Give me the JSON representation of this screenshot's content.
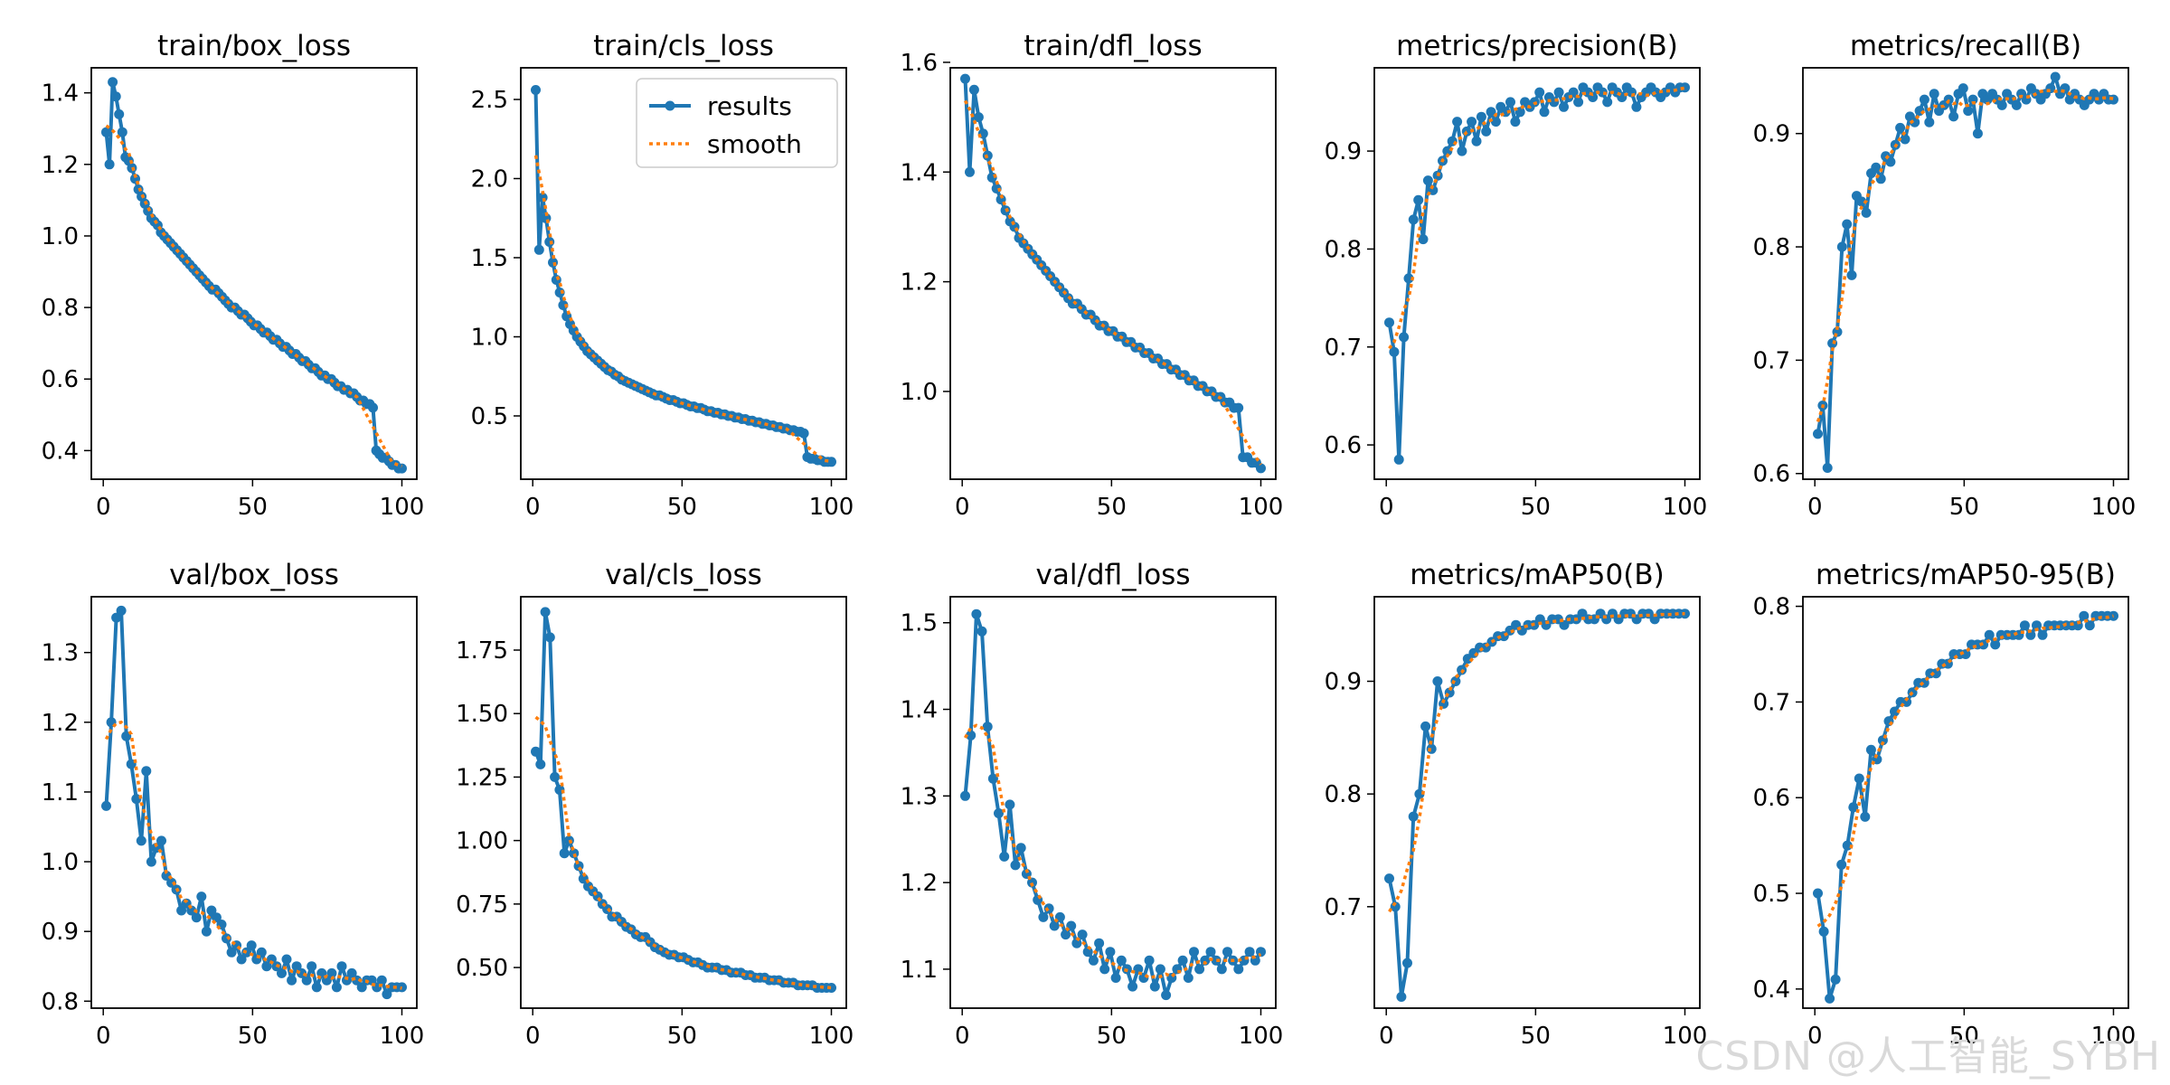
{
  "legend": {
    "results_label": "results",
    "smooth_label": "smooth"
  },
  "watermark": "CSDN @人工智能_SYBH",
  "colors": {
    "results": "#1f77b4",
    "smooth": "#ff7f0e",
    "axis": "#000000"
  },
  "chart_data": [
    {
      "id": "train_box_loss",
      "type": "line",
      "title": "train/box_loss",
      "xlim": [
        -4,
        105
      ],
      "ylim": [
        0.32,
        1.47
      ],
      "xticks": [
        0,
        50,
        100
      ],
      "yticks": [
        0.4,
        0.6,
        0.8,
        1.0,
        1.2,
        1.4
      ],
      "ytick_labels": [
        "0.4",
        "0.6",
        "0.8",
        "1.0",
        "1.2",
        "1.4"
      ],
      "series": [
        {
          "name": "results",
          "x_start": 1,
          "values": [
            1.29,
            1.2,
            1.43,
            1.39,
            1.34,
            1.29,
            1.22,
            1.21,
            1.19,
            1.16,
            1.13,
            1.11,
            1.09,
            1.07,
            1.05,
            1.04,
            1.03,
            1.01,
            1.0,
            0.99,
            0.98,
            0.97,
            0.96,
            0.95,
            0.94,
            0.93,
            0.92,
            0.91,
            0.9,
            0.89,
            0.88,
            0.87,
            0.86,
            0.85,
            0.85,
            0.84,
            0.83,
            0.82,
            0.81,
            0.8,
            0.8,
            0.79,
            0.78,
            0.78,
            0.77,
            0.76,
            0.75,
            0.75,
            0.74,
            0.73,
            0.73,
            0.72,
            0.71,
            0.71,
            0.7,
            0.69,
            0.69,
            0.68,
            0.67,
            0.67,
            0.66,
            0.65,
            0.65,
            0.64,
            0.63,
            0.63,
            0.62,
            0.61,
            0.61,
            0.6,
            0.6,
            0.59,
            0.58,
            0.58,
            0.57,
            0.57,
            0.56,
            0.56,
            0.55,
            0.54,
            0.54,
            0.53,
            0.53,
            0.52,
            0.4,
            0.39,
            0.38,
            0.38,
            0.37,
            0.36,
            0.36,
            0.35,
            0.35
          ]
        }
      ],
      "legend": false
    },
    {
      "id": "train_cls_loss",
      "type": "line",
      "title": "train/cls_loss",
      "xlim": [
        -4,
        105
      ],
      "ylim": [
        0.1,
        2.7
      ],
      "xticks": [
        0,
        50,
        100
      ],
      "yticks": [
        0.5,
        1.0,
        1.5,
        2.0,
        2.5
      ],
      "ytick_labels": [
        "0.5",
        "1.0",
        "1.5",
        "2.0",
        "2.5"
      ],
      "series": [
        {
          "name": "results",
          "x_start": 1,
          "values": [
            2.56,
            1.55,
            1.88,
            1.75,
            1.6,
            1.47,
            1.36,
            1.28,
            1.2,
            1.13,
            1.08,
            1.04,
            1.0,
            0.97,
            0.94,
            0.91,
            0.89,
            0.87,
            0.85,
            0.83,
            0.81,
            0.79,
            0.78,
            0.76,
            0.75,
            0.73,
            0.72,
            0.71,
            0.7,
            0.69,
            0.68,
            0.67,
            0.66,
            0.65,
            0.64,
            0.63,
            0.63,
            0.62,
            0.61,
            0.6,
            0.6,
            0.59,
            0.58,
            0.58,
            0.57,
            0.56,
            0.56,
            0.55,
            0.55,
            0.54,
            0.53,
            0.53,
            0.52,
            0.52,
            0.51,
            0.51,
            0.5,
            0.5,
            0.49,
            0.49,
            0.48,
            0.48,
            0.47,
            0.47,
            0.46,
            0.46,
            0.45,
            0.45,
            0.44,
            0.44,
            0.43,
            0.43,
            0.42,
            0.42,
            0.41,
            0.41,
            0.4,
            0.4,
            0.39,
            0.24,
            0.23,
            0.23,
            0.22,
            0.22,
            0.21,
            0.21,
            0.21
          ]
        }
      ],
      "legend": true
    },
    {
      "id": "train_dfl_loss",
      "type": "line",
      "title": "train/dfl_loss",
      "xlim": [
        -4,
        105
      ],
      "ylim": [
        0.84,
        1.59
      ],
      "xticks": [
        0,
        50,
        100
      ],
      "yticks": [
        1.0,
        1.2,
        1.4,
        1.6
      ],
      "ytick_labels": [
        "1.0",
        "1.2",
        "1.4",
        "1.6"
      ],
      "series": [
        {
          "name": "results",
          "x_start": 1,
          "values": [
            1.57,
            1.4,
            1.55,
            1.5,
            1.47,
            1.43,
            1.39,
            1.37,
            1.35,
            1.33,
            1.31,
            1.3,
            1.28,
            1.27,
            1.26,
            1.25,
            1.24,
            1.23,
            1.22,
            1.21,
            1.2,
            1.19,
            1.18,
            1.17,
            1.16,
            1.16,
            1.15,
            1.14,
            1.14,
            1.13,
            1.12,
            1.12,
            1.11,
            1.11,
            1.1,
            1.1,
            1.09,
            1.09,
            1.08,
            1.08,
            1.07,
            1.07,
            1.06,
            1.06,
            1.05,
            1.05,
            1.04,
            1.04,
            1.03,
            1.03,
            1.02,
            1.02,
            1.01,
            1.01,
            1.0,
            1.0,
            0.99,
            0.99,
            0.98,
            0.98,
            0.97,
            0.97,
            0.88,
            0.88,
            0.87,
            0.87,
            0.86
          ]
        }
      ],
      "legend": false
    },
    {
      "id": "metrics_precision",
      "type": "line",
      "title": "metrics/precision(B)",
      "xlim": [
        -4,
        105
      ],
      "ylim": [
        0.565,
        0.985
      ],
      "xticks": [
        0,
        50,
        100
      ],
      "yticks": [
        0.6,
        0.7,
        0.8,
        0.9
      ],
      "ytick_labels": [
        "0.6",
        "0.7",
        "0.8",
        "0.9"
      ],
      "series": [
        {
          "name": "results",
          "x_start": 1,
          "values": [
            0.725,
            0.695,
            0.585,
            0.71,
            0.77,
            0.83,
            0.85,
            0.81,
            0.87,
            0.86,
            0.875,
            0.89,
            0.9,
            0.91,
            0.93,
            0.9,
            0.92,
            0.93,
            0.91,
            0.935,
            0.92,
            0.94,
            0.93,
            0.945,
            0.94,
            0.95,
            0.93,
            0.94,
            0.95,
            0.945,
            0.95,
            0.96,
            0.94,
            0.955,
            0.95,
            0.96,
            0.945,
            0.955,
            0.96,
            0.95,
            0.965,
            0.96,
            0.955,
            0.965,
            0.96,
            0.95,
            0.965,
            0.96,
            0.955,
            0.965,
            0.96,
            0.945,
            0.955,
            0.96,
            0.965,
            0.96,
            0.955,
            0.96,
            0.965,
            0.96,
            0.965,
            0.965
          ]
        }
      ],
      "legend": false
    },
    {
      "id": "metrics_recall",
      "type": "line",
      "title": "metrics/recall(B)",
      "xlim": [
        -4,
        105
      ],
      "ylim": [
        0.595,
        0.958
      ],
      "xticks": [
        0,
        50,
        100
      ],
      "yticks": [
        0.6,
        0.7,
        0.8,
        0.9
      ],
      "ytick_labels": [
        "0.6",
        "0.7",
        "0.8",
        "0.9"
      ],
      "series": [
        {
          "name": "results",
          "x_start": 1,
          "values": [
            0.635,
            0.66,
            0.605,
            0.715,
            0.725,
            0.8,
            0.82,
            0.775,
            0.845,
            0.84,
            0.83,
            0.865,
            0.87,
            0.86,
            0.88,
            0.875,
            0.89,
            0.905,
            0.895,
            0.915,
            0.91,
            0.92,
            0.93,
            0.91,
            0.935,
            0.92,
            0.925,
            0.93,
            0.915,
            0.935,
            0.94,
            0.92,
            0.93,
            0.9,
            0.935,
            0.93,
            0.935,
            0.93,
            0.925,
            0.935,
            0.93,
            0.925,
            0.935,
            0.93,
            0.94,
            0.935,
            0.93,
            0.935,
            0.94,
            0.95,
            0.935,
            0.94,
            0.93,
            0.935,
            0.93,
            0.925,
            0.93,
            0.935,
            0.93,
            0.935,
            0.93,
            0.93
          ]
        }
      ],
      "legend": false
    },
    {
      "id": "val_box_loss",
      "type": "line",
      "title": "val/box_loss",
      "xlim": [
        -4,
        105
      ],
      "ylim": [
        0.79,
        1.38
      ],
      "xticks": [
        0,
        50,
        100
      ],
      "yticks": [
        0.8,
        0.9,
        1.0,
        1.1,
        1.2,
        1.3
      ],
      "ytick_labels": [
        "0.8",
        "0.9",
        "1.0",
        "1.1",
        "1.2",
        "1.3"
      ],
      "series": [
        {
          "name": "results",
          "x_start": 1,
          "values": [
            1.08,
            1.2,
            1.35,
            1.36,
            1.18,
            1.14,
            1.09,
            1.03,
            1.13,
            1.0,
            1.02,
            1.03,
            0.98,
            0.97,
            0.96,
            0.93,
            0.94,
            0.93,
            0.92,
            0.95,
            0.9,
            0.93,
            0.92,
            0.91,
            0.89,
            0.87,
            0.88,
            0.86,
            0.87,
            0.88,
            0.86,
            0.87,
            0.85,
            0.86,
            0.85,
            0.84,
            0.86,
            0.83,
            0.85,
            0.84,
            0.83,
            0.85,
            0.82,
            0.84,
            0.83,
            0.84,
            0.82,
            0.85,
            0.83,
            0.84,
            0.83,
            0.82,
            0.83,
            0.83,
            0.82,
            0.83,
            0.81,
            0.82,
            0.82,
            0.82
          ]
        }
      ],
      "legend": false
    },
    {
      "id": "val_cls_loss",
      "type": "line",
      "title": "val/cls_loss",
      "xlim": [
        -4,
        105
      ],
      "ylim": [
        0.34,
        1.96
      ],
      "xticks": [
        0,
        50,
        100
      ],
      "yticks": [
        0.5,
        0.75,
        1.0,
        1.25,
        1.5,
        1.75
      ],
      "ytick_labels": [
        "0.50",
        "0.75",
        "1.00",
        "1.25",
        "1.50",
        "1.75"
      ],
      "series": [
        {
          "name": "results",
          "x_start": 1,
          "values": [
            1.35,
            1.3,
            1.9,
            1.8,
            1.25,
            1.2,
            0.95,
            1.0,
            0.95,
            0.9,
            0.85,
            0.82,
            0.8,
            0.78,
            0.75,
            0.73,
            0.7,
            0.7,
            0.68,
            0.66,
            0.65,
            0.63,
            0.62,
            0.62,
            0.6,
            0.58,
            0.57,
            0.56,
            0.55,
            0.55,
            0.54,
            0.54,
            0.53,
            0.52,
            0.52,
            0.51,
            0.5,
            0.5,
            0.5,
            0.49,
            0.49,
            0.48,
            0.48,
            0.48,
            0.47,
            0.47,
            0.46,
            0.46,
            0.46,
            0.45,
            0.45,
            0.45,
            0.44,
            0.44,
            0.44,
            0.43,
            0.43,
            0.43,
            0.43,
            0.42,
            0.42,
            0.42,
            0.42
          ]
        }
      ],
      "legend": false
    },
    {
      "id": "val_dfl_loss",
      "type": "line",
      "title": "val/dfl_loss",
      "xlim": [
        -4,
        105
      ],
      "ylim": [
        1.055,
        1.53
      ],
      "xticks": [
        0,
        50,
        100
      ],
      "yticks": [
        1.1,
        1.2,
        1.3,
        1.4,
        1.5
      ],
      "ytick_labels": [
        "1.1",
        "1.2",
        "1.3",
        "1.4",
        "1.5"
      ],
      "series": [
        {
          "name": "results",
          "x_start": 1,
          "values": [
            1.3,
            1.37,
            1.51,
            1.49,
            1.38,
            1.32,
            1.28,
            1.23,
            1.29,
            1.22,
            1.24,
            1.21,
            1.2,
            1.18,
            1.16,
            1.17,
            1.15,
            1.16,
            1.14,
            1.15,
            1.13,
            1.14,
            1.12,
            1.11,
            1.13,
            1.1,
            1.12,
            1.09,
            1.11,
            1.1,
            1.08,
            1.1,
            1.09,
            1.11,
            1.08,
            1.1,
            1.07,
            1.09,
            1.1,
            1.11,
            1.09,
            1.12,
            1.1,
            1.11,
            1.12,
            1.11,
            1.1,
            1.12,
            1.11,
            1.1,
            1.11,
            1.12,
            1.11,
            1.12
          ]
        }
      ],
      "legend": false
    },
    {
      "id": "metrics_map50",
      "type": "line",
      "title": "metrics/mAP50(B)",
      "xlim": [
        -4,
        105
      ],
      "ylim": [
        0.61,
        0.975
      ],
      "xticks": [
        0,
        50,
        100
      ],
      "yticks": [
        0.7,
        0.8,
        0.9
      ],
      "ytick_labels": [
        "0.7",
        "0.8",
        "0.9"
      ],
      "series": [
        {
          "name": "results",
          "x_start": 1,
          "values": [
            0.725,
            0.7,
            0.62,
            0.65,
            0.78,
            0.8,
            0.86,
            0.84,
            0.9,
            0.88,
            0.89,
            0.9,
            0.91,
            0.92,
            0.925,
            0.93,
            0.93,
            0.935,
            0.94,
            0.94,
            0.945,
            0.95,
            0.945,
            0.95,
            0.95,
            0.955,
            0.95,
            0.955,
            0.955,
            0.95,
            0.955,
            0.955,
            0.96,
            0.955,
            0.955,
            0.96,
            0.955,
            0.96,
            0.955,
            0.96,
            0.96,
            0.955,
            0.96,
            0.96,
            0.955,
            0.96,
            0.96,
            0.96,
            0.96,
            0.96
          ]
        }
      ],
      "legend": false
    },
    {
      "id": "metrics_map50_95",
      "type": "line",
      "title": "metrics/mAP50-95(B)",
      "xlim": [
        -4,
        105
      ],
      "ylim": [
        0.38,
        0.81
      ],
      "xticks": [
        0,
        50,
        100
      ],
      "yticks": [
        0.4,
        0.5,
        0.6,
        0.7,
        0.8
      ],
      "ytick_labels": [
        "0.4",
        "0.5",
        "0.6",
        "0.7",
        "0.8"
      ],
      "series": [
        {
          "name": "results",
          "x_start": 1,
          "values": [
            0.5,
            0.46,
            0.39,
            0.41,
            0.53,
            0.55,
            0.59,
            0.62,
            0.58,
            0.65,
            0.64,
            0.66,
            0.68,
            0.69,
            0.7,
            0.7,
            0.71,
            0.72,
            0.72,
            0.73,
            0.73,
            0.74,
            0.74,
            0.75,
            0.75,
            0.75,
            0.76,
            0.76,
            0.76,
            0.77,
            0.76,
            0.77,
            0.77,
            0.77,
            0.77,
            0.78,
            0.77,
            0.78,
            0.77,
            0.78,
            0.78,
            0.78,
            0.78,
            0.78,
            0.78,
            0.79,
            0.78,
            0.79,
            0.79,
            0.79,
            0.79
          ]
        }
      ],
      "legend": false
    }
  ]
}
